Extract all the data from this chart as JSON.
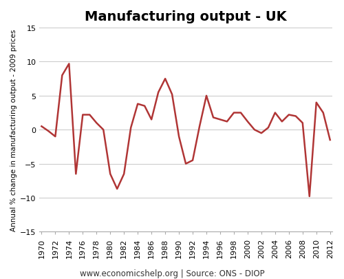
{
  "title": "Manufacturing output - UK",
  "ylabel": "Annual % change in manufacturing output - 2009 prices",
  "footnote": "www.economicshelp.org | Source: ONS - DIOP",
  "ylim": [
    -15,
    15
  ],
  "yticks": [
    -15,
    -10,
    -5,
    0,
    5,
    10,
    15
  ],
  "line_color": "#b03535",
  "line_width": 1.8,
  "background_color": "#ffffff",
  "years": [
    1970,
    1971,
    1972,
    1973,
    1974,
    1975,
    1976,
    1977,
    1978,
    1979,
    1980,
    1981,
    1982,
    1983,
    1984,
    1985,
    1986,
    1987,
    1988,
    1989,
    1990,
    1991,
    1992,
    1993,
    1994,
    1995,
    1996,
    1997,
    1998,
    1999,
    2000,
    2001,
    2002,
    2003,
    2004,
    2005,
    2006,
    2007,
    2008,
    2009,
    2010,
    2011,
    2012
  ],
  "values": [
    0.5,
    -0.2,
    -1.0,
    8.0,
    9.7,
    -6.5,
    2.2,
    2.2,
    1.0,
    0.0,
    -6.5,
    -8.7,
    -6.5,
    0.3,
    3.8,
    3.5,
    1.5,
    5.5,
    7.5,
    5.2,
    -1.0,
    -5.0,
    -4.5,
    0.5,
    5.0,
    1.8,
    1.5,
    1.2,
    2.5,
    2.5,
    1.2,
    0.0,
    -0.5,
    0.3,
    2.5,
    1.2,
    2.2,
    2.0,
    1.0,
    -9.8,
    4.0,
    2.5,
    -1.5
  ],
  "xtick_years": [
    1970,
    1972,
    1974,
    1976,
    1978,
    1980,
    1982,
    1984,
    1986,
    1988,
    1990,
    1992,
    1994,
    1996,
    1998,
    2000,
    2002,
    2004,
    2006,
    2008,
    2010,
    2012
  ],
  "title_fontsize": 14,
  "ylabel_fontsize": 7.5,
  "tick_fontsize": 8,
  "footnote_fontsize": 8.5,
  "grid_color": "#cccccc",
  "spine_color": "#aaaaaa"
}
